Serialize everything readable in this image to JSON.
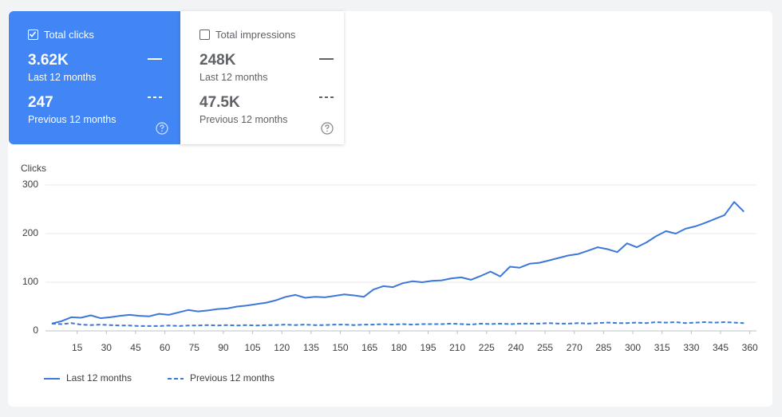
{
  "metrics": [
    {
      "label": "Total clicks",
      "value": "3.62K",
      "period": "Last 12 months",
      "previous_value": "247",
      "previous_period": "Previous 12 months",
      "selected": true
    },
    {
      "label": "Total impressions",
      "value": "248K",
      "period": "Last 12 months",
      "previous_value": "47.5K",
      "previous_period": "Previous 12 months",
      "selected": false
    }
  ],
  "chart_data": {
    "type": "line",
    "y_label": "Clicks",
    "x": [
      2,
      7,
      12,
      17,
      22,
      27,
      32,
      37,
      42,
      47,
      52,
      57,
      62,
      67,
      72,
      77,
      82,
      87,
      92,
      97,
      102,
      107,
      112,
      117,
      122,
      127,
      132,
      137,
      142,
      147,
      152,
      157,
      162,
      167,
      172,
      177,
      182,
      187,
      192,
      197,
      202,
      207,
      212,
      217,
      222,
      227,
      232,
      237,
      242,
      247,
      252,
      257,
      262,
      267,
      272,
      277,
      282,
      287,
      292,
      297,
      302,
      307,
      312,
      317,
      322,
      327,
      332,
      337,
      342,
      347,
      352,
      357
    ],
    "series": [
      {
        "name": "Last 12 months",
        "color": "#3c78d8",
        "dash": false,
        "values": [
          15,
          20,
          28,
          27,
          32,
          26,
          28,
          31,
          33,
          31,
          30,
          35,
          33,
          38,
          43,
          40,
          42,
          45,
          46,
          50,
          52,
          55,
          58,
          63,
          70,
          74,
          68,
          70,
          69,
          72,
          75,
          73,
          70,
          85,
          92,
          90,
          98,
          102,
          100,
          103,
          104,
          108,
          110,
          105,
          113,
          122,
          112,
          132,
          130,
          138,
          140,
          145,
          150,
          155,
          158,
          165,
          172,
          168,
          162,
          180,
          172,
          182,
          195,
          205,
          200,
          210,
          215,
          222,
          230,
          238,
          265,
          245
        ]
      },
      {
        "name": "Previous 12 months",
        "color": "#3c78d8",
        "dash": true,
        "values": [
          15,
          14,
          16,
          13,
          12,
          13,
          12,
          11,
          11,
          10,
          10,
          10,
          11,
          10,
          11,
          11,
          12,
          11,
          12,
          11,
          12,
          11,
          12,
          12,
          13,
          12,
          13,
          12,
          12,
          13,
          13,
          12,
          13,
          13,
          14,
          13,
          14,
          13,
          14,
          14,
          14,
          15,
          14,
          13,
          15,
          14,
          15,
          14,
          15,
          15,
          15,
          16,
          15,
          15,
          16,
          15,
          16,
          17,
          16,
          16,
          17,
          16,
          18,
          17,
          18,
          16,
          17,
          18,
          17,
          18,
          17,
          16
        ]
      }
    ],
    "xlim": [
      0,
      363
    ],
    "xticks": [
      15,
      30,
      45,
      60,
      75,
      90,
      105,
      120,
      135,
      150,
      165,
      180,
      195,
      210,
      225,
      240,
      255,
      270,
      285,
      300,
      315,
      330,
      345,
      360
    ],
    "ylim": [
      0,
      300
    ],
    "yticks": [
      0,
      100,
      200,
      300
    ],
    "grid": true
  }
}
